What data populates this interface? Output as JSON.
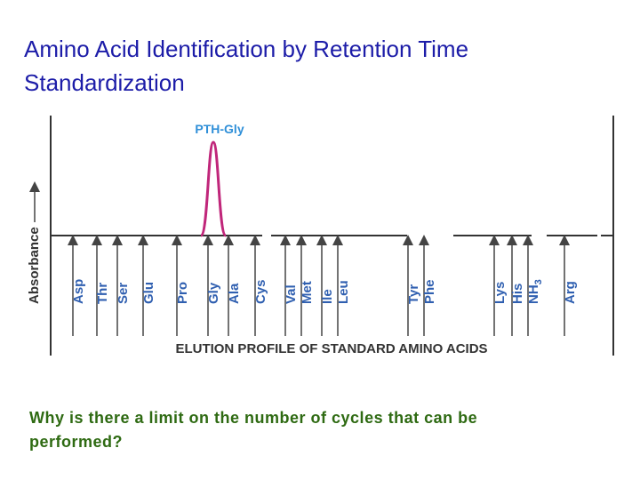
{
  "title": {
    "lines": [
      "Amino Acid Identification by Retention Time",
      "Standardization"
    ]
  },
  "figure": {
    "peak_label": "PTH-Gly",
    "y_axis_label": "Absorbance",
    "x_axis_label": "ELUTION PROFILE OF STANDARD AMINO ACIDS",
    "amino_acids": [
      "Asp",
      "Thr",
      "Ser",
      "Glu",
      "Pro",
      "Gly",
      "Ala",
      "Cys",
      "Val",
      "Met",
      "Ile",
      "Leu",
      "Tyr",
      "Phe",
      "Lys",
      "His",
      {
        "main": "NH",
        "sub": "3"
      },
      "Arg"
    ]
  },
  "question": {
    "lines": [
      "Why is there a limit on the number of cycles that can be",
      "performed?"
    ]
  }
}
